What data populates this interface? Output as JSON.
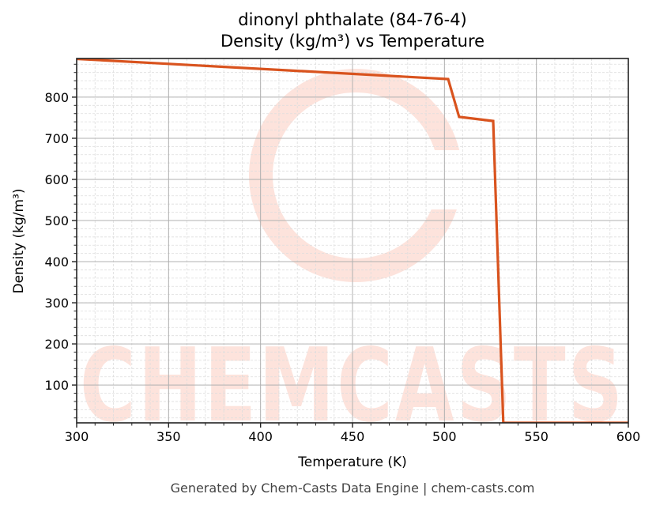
{
  "title": {
    "line1": "dinonyl phthalate (84-76-4)",
    "line2": "Density (kg/m³) vs Temperature"
  },
  "axes": {
    "xlabel": "Temperature (K)",
    "ylabel": "Density (kg/m³)"
  },
  "footer": "Generated by Chem-Casts Data Engine | chem-casts.com",
  "watermark": "CHEMCASTS",
  "colors": {
    "line": "#d9531e",
    "watermark": "#fde3dc",
    "major_grid": "#b0b0b0",
    "minor_grid": "#dddddd",
    "footer_text": "#444444"
  },
  "chart_data": {
    "type": "line",
    "title": "dinonyl phthalate (84-76-4)\nDensity (kg/m³) vs Temperature",
    "xlabel": "Temperature (K)",
    "ylabel": "Density (kg/m³)",
    "xlim": [
      300,
      600
    ],
    "ylim": [
      8,
      894
    ],
    "xticks": [
      300,
      350,
      400,
      450,
      500,
      550,
      600
    ],
    "yticks": [
      100,
      200,
      300,
      400,
      500,
      600,
      700,
      800
    ],
    "grid": {
      "major": true,
      "minor": true
    },
    "legend": null,
    "series": [
      {
        "name": "Density",
        "x": [
          300,
          502,
          508,
          526.5,
          532,
          600
        ],
        "y": [
          893,
          844,
          752,
          742,
          8,
          8
        ]
      }
    ]
  }
}
